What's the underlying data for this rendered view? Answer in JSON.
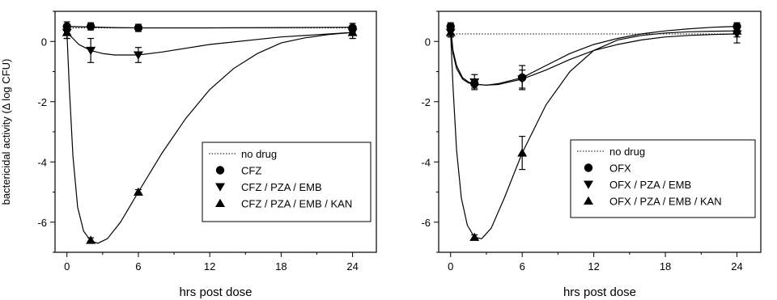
{
  "chart_data": [
    {
      "type": "line",
      "panel": "left",
      "xlabel": "hrs post dose",
      "ylabel": "bactericidal activity (Δ log CFU)",
      "xlim": [
        -1,
        26
      ],
      "ylim": [
        -7,
        1
      ],
      "xticks": [
        0,
        6,
        12,
        18,
        24
      ],
      "yticks": [
        0,
        -2,
        -4,
        -6
      ],
      "legend": {
        "position": "bottom-right",
        "entries": [
          "no drug",
          "CFZ",
          "CFZ / PZA / EMB",
          "CFZ / PZA / EMB / KAN"
        ]
      },
      "series": [
        {
          "name": "no drug",
          "marker": "none",
          "style": "dotted",
          "x": [
            0,
            24
          ],
          "y": [
            0.45,
            0.45
          ]
        },
        {
          "name": "CFZ",
          "marker": "circle",
          "x": [
            0,
            2,
            6,
            24
          ],
          "y": [
            0.5,
            0.5,
            0.45,
            0.45
          ],
          "err": [
            0.15,
            0.12,
            0.12,
            0.15
          ],
          "curve": [
            [
              0,
              0.5
            ],
            [
              1,
              0.49
            ],
            [
              2,
              0.48
            ],
            [
              4,
              0.46
            ],
            [
              6,
              0.45
            ],
            [
              12,
              0.45
            ],
            [
              18,
              0.46
            ],
            [
              24,
              0.47
            ]
          ]
        },
        {
          "name": "CFZ / PZA / EMB",
          "marker": "triangle-down",
          "x": [
            0,
            2,
            6,
            24
          ],
          "y": [
            0.3,
            -0.3,
            -0.45,
            0.3
          ],
          "err": [
            0.2,
            0.4,
            0.25,
            0.2
          ],
          "curve": [
            [
              0,
              0.3
            ],
            [
              0.5,
              0.1
            ],
            [
              1,
              -0.1
            ],
            [
              2,
              -0.3
            ],
            [
              3,
              -0.4
            ],
            [
              4,
              -0.45
            ],
            [
              6,
              -0.45
            ],
            [
              8,
              -0.35
            ],
            [
              12,
              -0.1
            ],
            [
              18,
              0.15
            ],
            [
              24,
              0.3
            ]
          ]
        },
        {
          "name": "CFZ / PZA / EMB / KAN",
          "marker": "triangle-up",
          "x": [
            0,
            2,
            6,
            24
          ],
          "y": [
            0.3,
            -6.6,
            -5.0,
            0.3
          ],
          "err": [
            0.2,
            0.08,
            0.08,
            0.2
          ],
          "curve": [
            [
              0,
              0.3
            ],
            [
              0.2,
              -1.5
            ],
            [
              0.5,
              -3.8
            ],
            [
              0.9,
              -5.5
            ],
            [
              1.4,
              -6.3
            ],
            [
              2,
              -6.62
            ],
            [
              2.6,
              -6.7
            ],
            [
              3.4,
              -6.55
            ],
            [
              4.5,
              -6.0
            ],
            [
              6,
              -5.0
            ],
            [
              8,
              -3.7
            ],
            [
              10,
              -2.55
            ],
            [
              12,
              -1.6
            ],
            [
              14,
              -0.9
            ],
            [
              16,
              -0.4
            ],
            [
              18,
              -0.05
            ],
            [
              20,
              0.12
            ],
            [
              22,
              0.23
            ],
            [
              24,
              0.3
            ]
          ]
        }
      ]
    },
    {
      "type": "line",
      "panel": "right",
      "xlabel": "hrs post dose",
      "ylabel": "",
      "xlim": [
        -1,
        26
      ],
      "ylim": [
        -7,
        1
      ],
      "xticks": [
        0,
        6,
        12,
        18,
        24
      ],
      "yticks": [
        0,
        -2,
        -4,
        -6
      ],
      "legend": {
        "position": "bottom-right",
        "entries": [
          "no drug",
          "OFX",
          "OFX / PZA / EMB",
          "OFX / PZA / EMB / KAN"
        ]
      },
      "series": [
        {
          "name": "no drug",
          "marker": "none",
          "style": "dotted",
          "x": [
            0,
            24
          ],
          "y": [
            0.25,
            0.25
          ]
        },
        {
          "name": "OFX",
          "marker": "circle",
          "x": [
            0,
            2,
            6,
            24
          ],
          "y": [
            0.5,
            -1.4,
            -1.2,
            0.5
          ],
          "err": [
            0.12,
            0.15,
            0.4,
            0.12
          ],
          "curve": [
            [
              0,
              0.5
            ],
            [
              0.2,
              -0.3
            ],
            [
              0.5,
              -0.8
            ],
            [
              1,
              -1.2
            ],
            [
              1.5,
              -1.35
            ],
            [
              2,
              -1.42
            ],
            [
              3,
              -1.45
            ],
            [
              4,
              -1.4
            ],
            [
              6,
              -1.2
            ],
            [
              8,
              -0.8
            ],
            [
              10,
              -0.4
            ],
            [
              12,
              -0.1
            ],
            [
              14,
              0.1
            ],
            [
              16,
              0.25
            ],
            [
              18,
              0.35
            ],
            [
              20,
              0.42
            ],
            [
              22,
              0.47
            ],
            [
              24,
              0.5
            ]
          ]
        },
        {
          "name": "OFX / PZA / EMB",
          "marker": "triangle-down",
          "x": [
            0,
            2,
            6,
            24
          ],
          "y": [
            0.3,
            -1.35,
            -1.25,
            0.25
          ],
          "err": [
            0.15,
            0.25,
            0.3,
            0.3
          ],
          "curve": [
            [
              0,
              0.3
            ],
            [
              0.2,
              -0.4
            ],
            [
              0.5,
              -0.9
            ],
            [
              1,
              -1.25
            ],
            [
              1.5,
              -1.38
            ],
            [
              2,
              -1.42
            ],
            [
              3,
              -1.45
            ],
            [
              4,
              -1.43
            ],
            [
              6,
              -1.25
            ],
            [
              8,
              -0.95
            ],
            [
              10,
              -0.6
            ],
            [
              12,
              -0.3
            ],
            [
              14,
              -0.1
            ],
            [
              16,
              0.05
            ],
            [
              18,
              0.15
            ],
            [
              20,
              0.2
            ],
            [
              22,
              0.23
            ],
            [
              24,
              0.25
            ]
          ]
        },
        {
          "name": "OFX / PZA / EMB / KAN",
          "marker": "triangle-up",
          "x": [
            0,
            2,
            6,
            24
          ],
          "y": [
            0.3,
            -6.5,
            -3.7,
            0.35
          ],
          "err": [
            0.15,
            0.08,
            0.55,
            0.2
          ],
          "curve": [
            [
              0,
              0.3
            ],
            [
              0.2,
              -1.5
            ],
            [
              0.5,
              -3.6
            ],
            [
              0.9,
              -5.2
            ],
            [
              1.4,
              -6.1
            ],
            [
              2,
              -6.5
            ],
            [
              2.6,
              -6.55
            ],
            [
              3.4,
              -6.2
            ],
            [
              4.5,
              -5.2
            ],
            [
              6,
              -3.7
            ],
            [
              8,
              -2.1
            ],
            [
              10,
              -1.0
            ],
            [
              12,
              -0.3
            ],
            [
              14,
              0.05
            ],
            [
              16,
              0.2
            ],
            [
              18,
              0.28
            ],
            [
              20,
              0.32
            ],
            [
              22,
              0.34
            ],
            [
              24,
              0.35
            ]
          ]
        }
      ]
    }
  ]
}
